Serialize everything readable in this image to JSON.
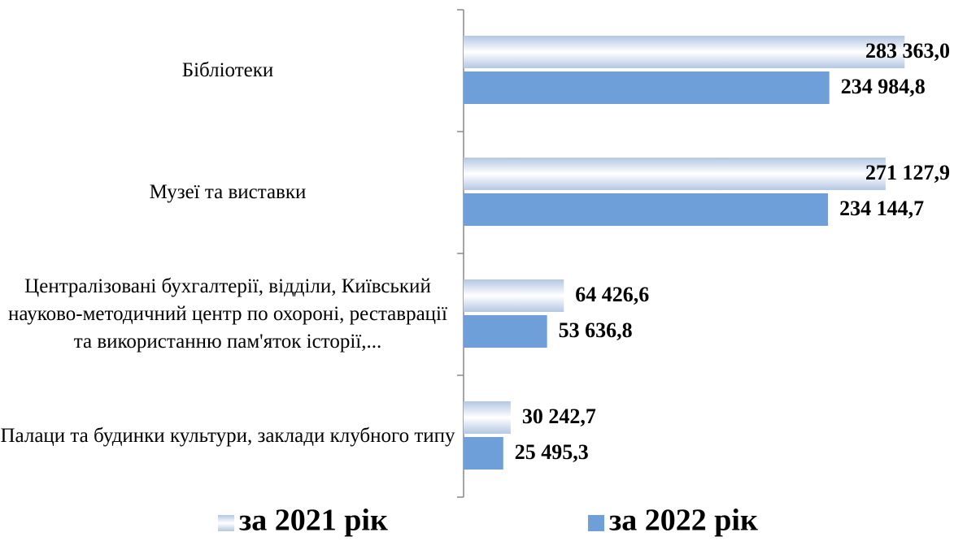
{
  "chart_data": {
    "type": "bar",
    "orientation": "horizontal",
    "categories": [
      "Бібліотеки",
      "Музеї та виставки",
      "Централізовані бухгалтерії, відділи, Київський науково-методичний центр по охороні, реставрації та використанню пам'яток історії,...",
      "Палаци та будинки культури, заклади клубного типу"
    ],
    "xlim": [
      0,
      290000
    ],
    "series": [
      {
        "name": "за 2021 рік",
        "color": "#b4c7e2",
        "values": [
          283363.0,
          271127.9,
          64426.6,
          30242.7
        ],
        "value_labels": [
          "283 363,0",
          "271 127,9",
          "64 426,6",
          "30 242,7"
        ]
      },
      {
        "name": "за 2022 рік",
        "color": "#6e9fd8",
        "values": [
          234984.8,
          234144.7,
          53636.8,
          25495.3
        ],
        "value_labels": [
          "234 984,8",
          "234 144,7",
          "53 636,8",
          "25 495,3"
        ]
      }
    ]
  }
}
